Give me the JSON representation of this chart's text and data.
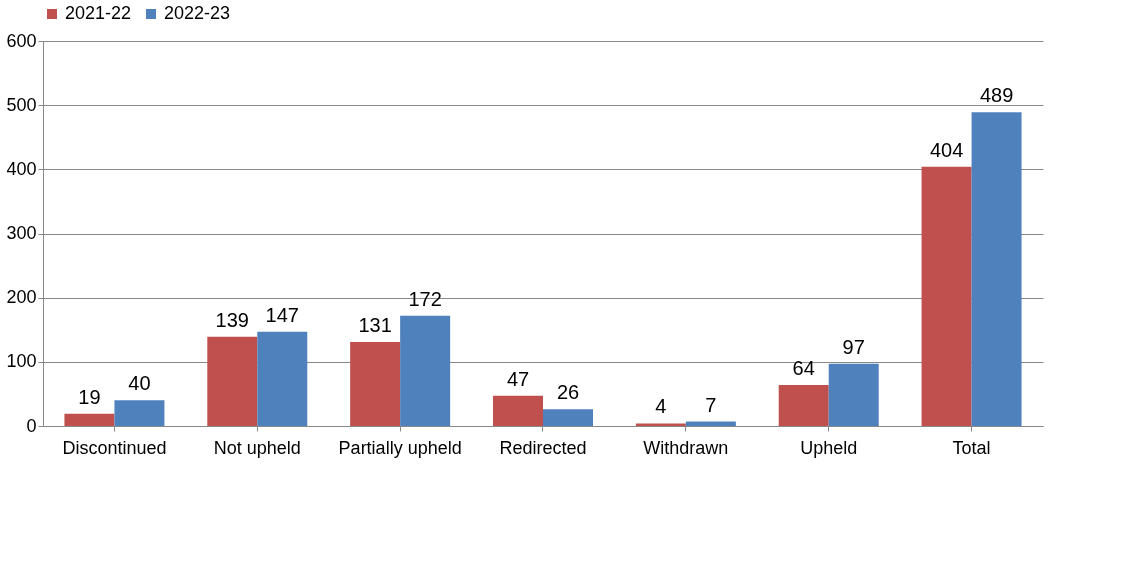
{
  "chart_data": {
    "type": "bar",
    "categories": [
      "Discontinued",
      "Not upheld",
      "Partially upheld",
      "Redirected",
      "Withdrawn",
      "Upheld",
      "Total"
    ],
    "series": [
      {
        "name": "2021-22",
        "color": "#c0504d",
        "values": [
          19,
          139,
          131,
          47,
          4,
          64,
          404
        ]
      },
      {
        "name": "2022-23",
        "color": "#4f81bd",
        "values": [
          40,
          147,
          172,
          26,
          7,
          97,
          489
        ]
      }
    ],
    "ylim": [
      0,
      600
    ],
    "yticks": [
      0,
      100,
      200,
      300,
      400,
      500,
      600
    ],
    "grid": "y",
    "legend": "top",
    "data_labels": true
  }
}
